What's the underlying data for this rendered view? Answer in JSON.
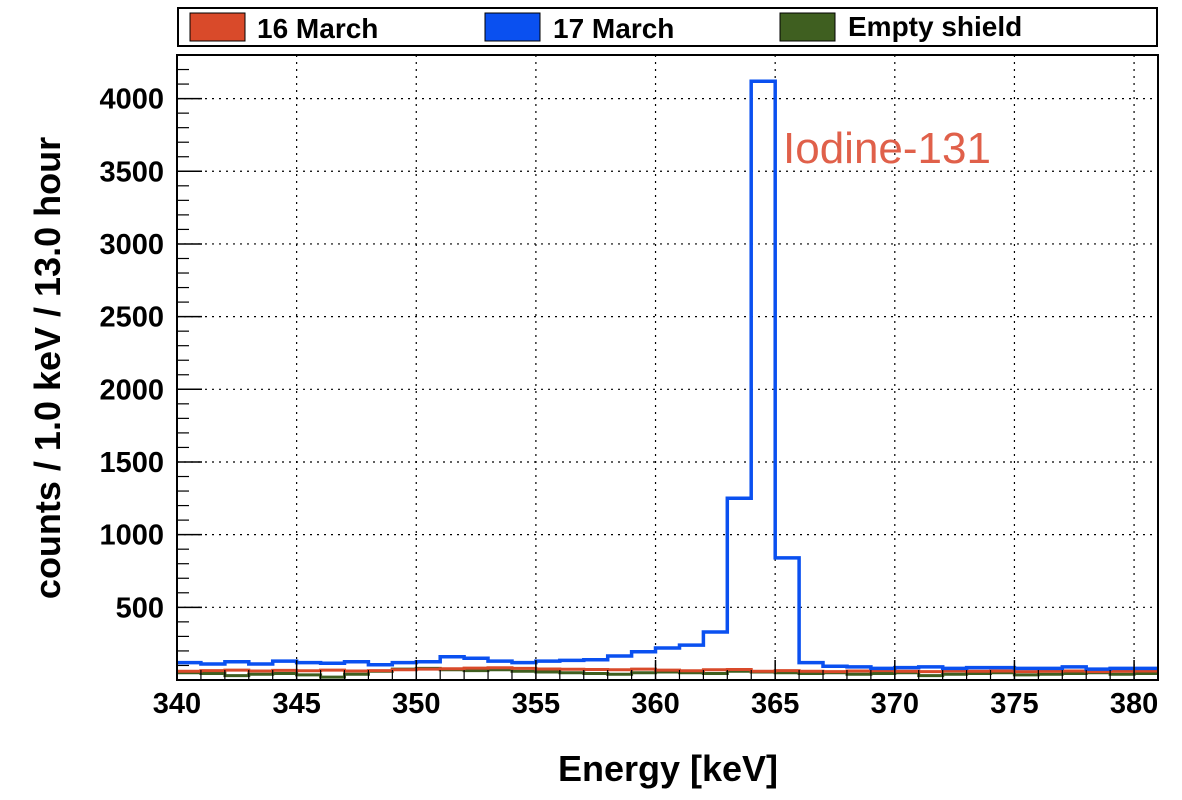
{
  "chart_data": {
    "type": "histogram-step",
    "xlabel": "Energy [keV]",
    "ylabel": "counts / 1.0 keV / 13.0 hour",
    "xlim": [
      340,
      381
    ],
    "ylim": [
      0,
      4300
    ],
    "bin_width": 1.0,
    "grid": true,
    "legend_position": "top",
    "x_ticks": [
      340,
      345,
      350,
      355,
      360,
      365,
      370,
      375,
      380
    ],
    "y_ticks": [
      500,
      1000,
      1500,
      2000,
      2500,
      3000,
      3500,
      4000
    ],
    "bin_edges": [
      340,
      341,
      342,
      343,
      344,
      345,
      346,
      347,
      348,
      349,
      350,
      351,
      352,
      353,
      354,
      355,
      356,
      357,
      358,
      359,
      360,
      361,
      362,
      363,
      364,
      365,
      366,
      367,
      368,
      369,
      370,
      371,
      372,
      373,
      374,
      375,
      376,
      377,
      378,
      379,
      380,
      381
    ],
    "series": [
      {
        "name": "16 March",
        "color": "#d94a2a",
        "values": [
          60,
          65,
          68,
          62,
          66,
          64,
          68,
          62,
          65,
          70,
          75,
          78,
          82,
          84,
          80,
          76,
          74,
          72,
          70,
          75,
          68,
          64,
          70,
          72,
          60,
          65,
          60,
          58,
          62,
          65,
          60,
          58,
          62,
          60,
          62,
          58,
          60,
          62,
          58,
          60,
          62
        ]
      },
      {
        "name": "17 March",
        "color": "#0a50f0",
        "values": [
          120,
          110,
          125,
          110,
          130,
          120,
          115,
          125,
          105,
          120,
          125,
          160,
          150,
          130,
          120,
          130,
          135,
          140,
          165,
          195,
          220,
          240,
          330,
          1250,
          4120,
          840,
          120,
          95,
          90,
          80,
          85,
          90,
          80,
          85,
          85,
          80,
          80,
          90,
          75,
          80,
          80
        ]
      },
      {
        "name": "Empty shield",
        "color": "#3f5f20",
        "values": [
          50,
          45,
          30,
          40,
          45,
          35,
          20,
          40,
          60,
          75,
          80,
          70,
          65,
          70,
          60,
          55,
          50,
          45,
          40,
          50,
          55,
          50,
          45,
          60,
          55,
          50,
          45,
          50,
          40,
          45,
          50,
          30,
          40,
          45,
          50,
          35,
          40,
          45,
          50,
          40,
          45
        ]
      }
    ],
    "annotations": [
      {
        "text": "Iodine-131",
        "x": 365.5,
        "y": 3600,
        "color": "#e0604a"
      }
    ]
  }
}
